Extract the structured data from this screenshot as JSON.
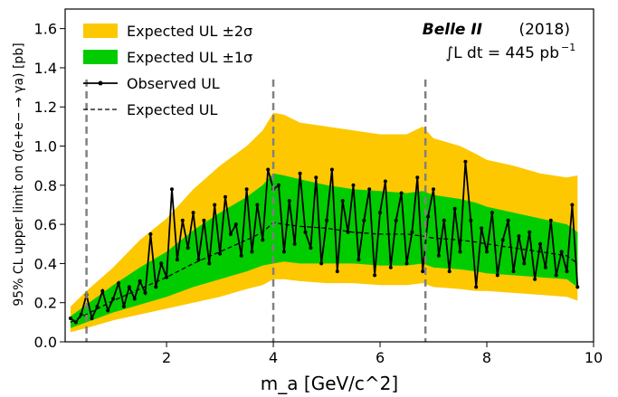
{
  "chart_data": {
    "type": "line",
    "xlabel": "m_a [GeV/c^2]",
    "ylabel": "95% CL upper limit on σ(e+e− → γa) [pb]",
    "xlim": [
      0.1,
      10.0
    ],
    "ylim": [
      0.0,
      1.7
    ],
    "xticks": [
      2,
      4,
      6,
      8,
      10
    ],
    "yticks": [
      0.0,
      0.2,
      0.4,
      0.6,
      0.8,
      1.0,
      1.2,
      1.4,
      1.6
    ],
    "grid": false,
    "legend_position": "top-left",
    "annotation": {
      "experiment": "Belle II",
      "year": "(2018)",
      "lumi_prefix": "∫L dt = 445 pb",
      "lumi_exp": "−1"
    },
    "vertical_lines": [
      0.5,
      4.0,
      6.85
    ],
    "colors": {
      "band_2sigma": "#fdc800",
      "band_1sigma": "#00cc00",
      "observed": "#000000",
      "expected": "#000000",
      "vlines": "#808080"
    },
    "legend": [
      {
        "label": "Expected UL ±2σ",
        "kind": "band2"
      },
      {
        "label": "Expected UL ±1σ",
        "kind": "band1"
      },
      {
        "label": "Observed UL",
        "kind": "observed"
      },
      {
        "label": "Expected UL",
        "kind": "expected"
      }
    ],
    "x": [
      0.2,
      0.5,
      1.0,
      1.5,
      2.0,
      2.5,
      3.0,
      3.5,
      3.8,
      4.0,
      4.2,
      4.5,
      5.0,
      5.5,
      6.0,
      6.5,
      6.8,
      7.0,
      7.5,
      7.8,
      8.0,
      8.5,
      9.0,
      9.5,
      9.7
    ],
    "expected": [
      0.1,
      0.14,
      0.21,
      0.27,
      0.33,
      0.4,
      0.46,
      0.52,
      0.56,
      0.61,
      0.6,
      0.59,
      0.58,
      0.56,
      0.55,
      0.55,
      0.54,
      0.53,
      0.52,
      0.51,
      0.5,
      0.48,
      0.46,
      0.44,
      0.4
    ],
    "band1_low": [
      0.07,
      0.1,
      0.15,
      0.19,
      0.23,
      0.28,
      0.32,
      0.36,
      0.39,
      0.4,
      0.41,
      0.4,
      0.4,
      0.4,
      0.39,
      0.39,
      0.4,
      0.38,
      0.37,
      0.36,
      0.35,
      0.34,
      0.33,
      0.32,
      0.28
    ],
    "band1_high": [
      0.13,
      0.19,
      0.29,
      0.38,
      0.46,
      0.57,
      0.66,
      0.74,
      0.8,
      0.86,
      0.85,
      0.83,
      0.8,
      0.78,
      0.77,
      0.76,
      0.77,
      0.75,
      0.73,
      0.71,
      0.69,
      0.66,
      0.63,
      0.6,
      0.56
    ],
    "band2_low": [
      0.05,
      0.07,
      0.11,
      0.14,
      0.17,
      0.2,
      0.23,
      0.27,
      0.29,
      0.32,
      0.32,
      0.31,
      0.3,
      0.3,
      0.29,
      0.29,
      0.3,
      0.28,
      0.27,
      0.26,
      0.26,
      0.25,
      0.24,
      0.23,
      0.21
    ],
    "band2_high": [
      0.18,
      0.26,
      0.38,
      0.52,
      0.63,
      0.78,
      0.9,
      1.0,
      1.08,
      1.17,
      1.16,
      1.12,
      1.1,
      1.08,
      1.06,
      1.06,
      1.1,
      1.04,
      1.0,
      0.96,
      0.93,
      0.9,
      0.86,
      0.84,
      0.85
    ],
    "observed_x": [
      0.2,
      0.3,
      0.4,
      0.5,
      0.6,
      0.7,
      0.8,
      0.9,
      1.0,
      1.1,
      1.2,
      1.3,
      1.4,
      1.5,
      1.6,
      1.7,
      1.8,
      1.9,
      2.0,
      2.1,
      2.2,
      2.3,
      2.4,
      2.5,
      2.6,
      2.7,
      2.8,
      2.9,
      3.0,
      3.1,
      3.2,
      3.3,
      3.4,
      3.5,
      3.6,
      3.7,
      3.8,
      3.9,
      4.0,
      4.1,
      4.2,
      4.3,
      4.4,
      4.5,
      4.6,
      4.7,
      4.8,
      4.9,
      5.0,
      5.1,
      5.2,
      5.3,
      5.4,
      5.5,
      5.6,
      5.7,
      5.8,
      5.9,
      6.0,
      6.1,
      6.2,
      6.3,
      6.4,
      6.5,
      6.6,
      6.7,
      6.8,
      6.9,
      7.0,
      7.1,
      7.2,
      7.3,
      7.4,
      7.5,
      7.6,
      7.7,
      7.8,
      7.9,
      8.0,
      8.1,
      8.2,
      8.3,
      8.4,
      8.5,
      8.6,
      8.7,
      8.8,
      8.9,
      9.0,
      9.1,
      9.2,
      9.3,
      9.4,
      9.5,
      9.6,
      9.7
    ],
    "observed": [
      0.12,
      0.1,
      0.14,
      0.24,
      0.12,
      0.18,
      0.26,
      0.16,
      0.22,
      0.3,
      0.18,
      0.28,
      0.22,
      0.31,
      0.25,
      0.55,
      0.28,
      0.4,
      0.33,
      0.78,
      0.42,
      0.62,
      0.48,
      0.66,
      0.42,
      0.62,
      0.4,
      0.7,
      0.45,
      0.74,
      0.55,
      0.6,
      0.44,
      0.78,
      0.46,
      0.7,
      0.52,
      0.88,
      0.78,
      0.8,
      0.46,
      0.72,
      0.5,
      0.86,
      0.56,
      0.48,
      0.84,
      0.4,
      0.62,
      0.88,
      0.36,
      0.72,
      0.56,
      0.8,
      0.42,
      0.62,
      0.78,
      0.34,
      0.66,
      0.82,
      0.38,
      0.62,
      0.76,
      0.4,
      0.56,
      0.84,
      0.36,
      0.64,
      0.78,
      0.44,
      0.62,
      0.36,
      0.68,
      0.46,
      0.92,
      0.62,
      0.28,
      0.58,
      0.46,
      0.66,
      0.34,
      0.52,
      0.62,
      0.36,
      0.54,
      0.4,
      0.56,
      0.32,
      0.5,
      0.38,
      0.62,
      0.34,
      0.46,
      0.36,
      0.7,
      0.28
    ]
  }
}
